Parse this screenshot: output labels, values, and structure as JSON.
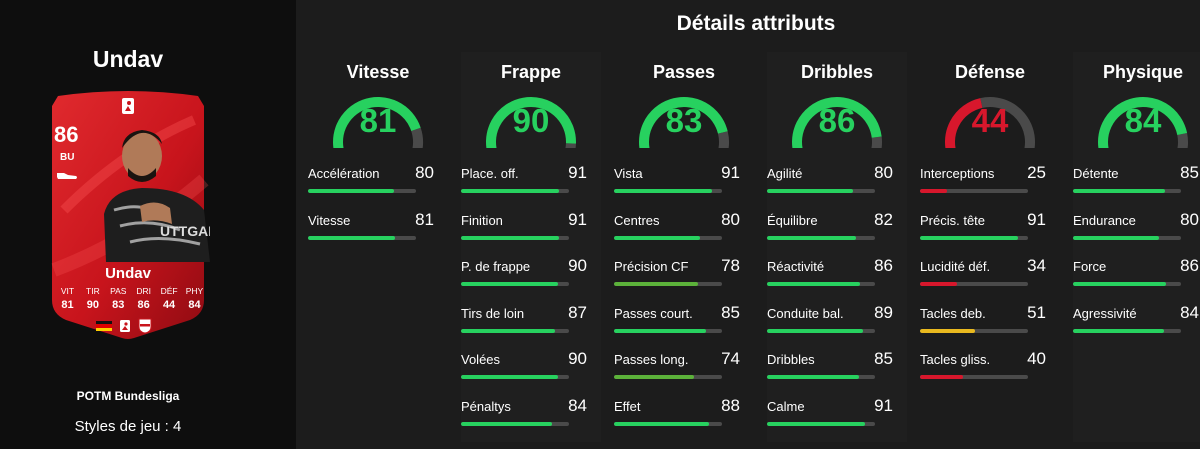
{
  "player": {
    "title": "Undav",
    "card_name": "Undav",
    "rating": "86",
    "position": "BU",
    "card_stats": [
      {
        "label": "VIT",
        "value": "81"
      },
      {
        "label": "TIR",
        "value": "90"
      },
      {
        "label": "PAS",
        "value": "83"
      },
      {
        "label": "DRI",
        "value": "86"
      },
      {
        "label": "DÉF",
        "value": "44"
      },
      {
        "label": "PHY",
        "value": "84"
      }
    ],
    "card_color": "#c8141c",
    "potm": "POTM Bundesliga",
    "playstyles": "Styles de jeu : 4"
  },
  "details_title": "Détails attributs",
  "colors": {
    "high": "#27d15f",
    "mid_green": "#5cb23a",
    "yellow": "#e9b91f",
    "low": "#d7172c",
    "track": "#4a4a4a"
  },
  "columns": [
    {
      "title": "Vitesse",
      "value": 81,
      "attrs": [
        {
          "name": "Accélération",
          "value": 80
        },
        {
          "name": "Vitesse",
          "value": 81
        }
      ]
    },
    {
      "title": "Frappe",
      "value": 90,
      "attrs": [
        {
          "name": "Place. off.",
          "value": 91
        },
        {
          "name": "Finition",
          "value": 91
        },
        {
          "name": "P. de frappe",
          "value": 90
        },
        {
          "name": "Tirs de loin",
          "value": 87
        },
        {
          "name": "Volées",
          "value": 90
        },
        {
          "name": "Pénaltys",
          "value": 84
        }
      ]
    },
    {
      "title": "Passes",
      "value": 83,
      "attrs": [
        {
          "name": "Vista",
          "value": 91
        },
        {
          "name": "Centres",
          "value": 80
        },
        {
          "name": "Précision CF",
          "value": 78
        },
        {
          "name": "Passes court.",
          "value": 85
        },
        {
          "name": "Passes long.",
          "value": 74
        },
        {
          "name": "Effet",
          "value": 88
        }
      ]
    },
    {
      "title": "Dribbles",
      "value": 86,
      "attrs": [
        {
          "name": "Agilité",
          "value": 80
        },
        {
          "name": "Équilibre",
          "value": 82
        },
        {
          "name": "Réactivité",
          "value": 86
        },
        {
          "name": "Conduite bal.",
          "value": 89
        },
        {
          "name": "Dribbles",
          "value": 85
        },
        {
          "name": "Calme",
          "value": 91
        }
      ]
    },
    {
      "title": "Défense",
      "value": 44,
      "attrs": [
        {
          "name": "Interceptions",
          "value": 25
        },
        {
          "name": "Précis. tête",
          "value": 91
        },
        {
          "name": "Lucidité déf.",
          "value": 34
        },
        {
          "name": "Tacles deb.",
          "value": 51
        },
        {
          "name": "Tacles gliss.",
          "value": 40
        }
      ]
    },
    {
      "title": "Physique",
      "value": 84,
      "attrs": [
        {
          "name": "Détente",
          "value": 85
        },
        {
          "name": "Endurance",
          "value": 80
        },
        {
          "name": "Force",
          "value": 86
        },
        {
          "name": "Agressivité",
          "value": 84
        }
      ]
    }
  ]
}
